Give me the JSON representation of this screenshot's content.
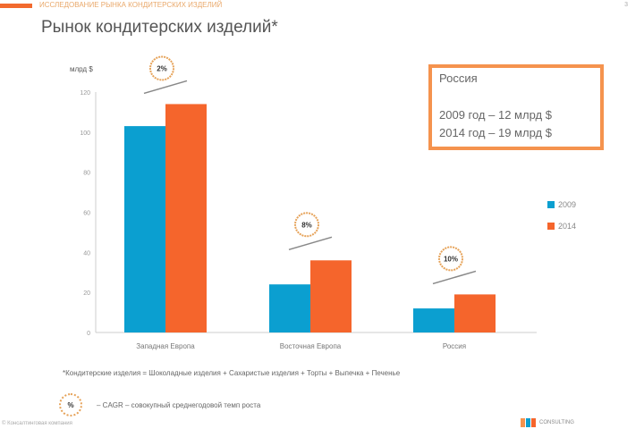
{
  "header": {
    "subheading": "ИССЛЕДОВАНИЕ РЫНКА КОНДИТЕРСКИХ ИЗДЕЛИЙ",
    "title": "Рынок кондитерских изделий*",
    "page": "3"
  },
  "info_box": {
    "heading": "Россия",
    "line1": "2009 год – 12 млрд $",
    "line2": "2014 год – 19 млрд $"
  },
  "footnote": "*Кондитерские изделия = Шоколадные изделия + Сахаристые изделия + Торты + Выпечка + Печенье",
  "cagr_note": {
    "badge": "%",
    "text": "– CAGR – совокупный среднегодовой темп роста"
  },
  "copyright": "© Консалтинговая компания",
  "logo_text": "CONSULTING",
  "colors": {
    "s2009": "#0b9fd0",
    "s2014": "#f5652c",
    "accent": "#f5934e"
  },
  "chart_data": {
    "type": "bar",
    "ylabel": "млрд $",
    "ylim": [
      0,
      120
    ],
    "yticks": [
      0,
      20,
      40,
      60,
      80,
      100,
      120
    ],
    "categories": [
      "Западная Европа",
      "Восточная Европа",
      "Россия"
    ],
    "series": [
      {
        "name": "2009",
        "values": [
          103,
          24,
          12
        ]
      },
      {
        "name": "2014",
        "values": [
          114,
          36,
          19
        ]
      }
    ],
    "annotations": [
      "2%",
      "8%",
      "10%"
    ],
    "legend": "right"
  }
}
